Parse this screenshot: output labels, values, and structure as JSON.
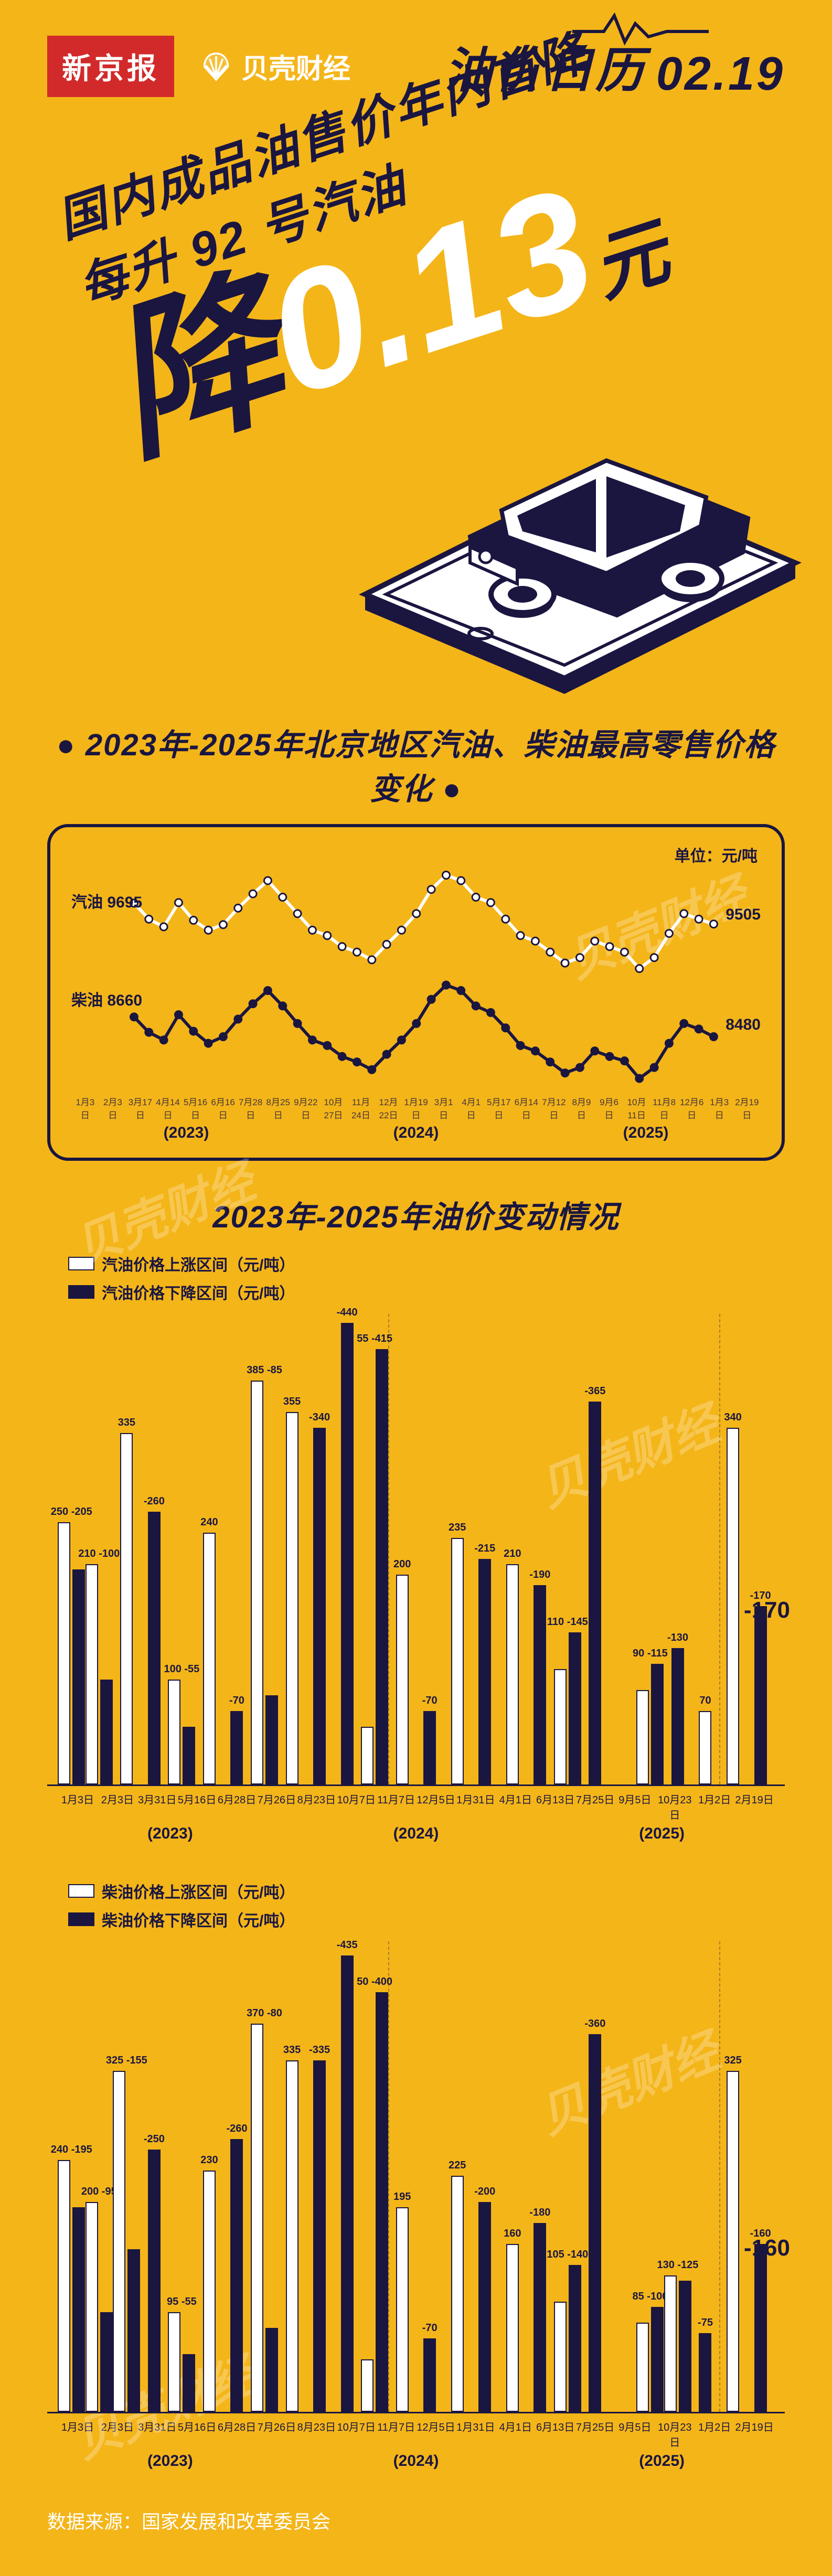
{
  "colors": {
    "bg": "#f4b519",
    "dark": "#1a1640",
    "red": "#d22a2a",
    "white": "#ffffff"
  },
  "header": {
    "brand_red": "新京报",
    "brand_shell": "贝壳财经",
    "title_script": "油价日历",
    "date": "02.19"
  },
  "hero": {
    "line1": "国内成品油售价年内首降",
    "line2": "每升 92 号汽油",
    "big_prefix": "降",
    "big_price": "0.13",
    "big_unit": "元"
  },
  "line_chart": {
    "title": "2023年-2025年北京地区汽油、柴油最高零售价格变化",
    "unit": "单位：元/吨",
    "series": [
      {
        "name": "汽油",
        "label_left": "汽油 9695",
        "label_right": "9505",
        "stroke": "#ffffff",
        "stroke_width": 6,
        "marker_fill": "#ffffff",
        "points": [
          9695,
          9550,
          9480,
          9700,
          9540,
          9450,
          9500,
          9650,
          9780,
          9900,
          9750,
          9600,
          9450,
          9400,
          9300,
          9250,
          9180,
          9320,
          9450,
          9600,
          9820,
          9950,
          9900,
          9750,
          9700,
          9550,
          9400,
          9350,
          9250,
          9150,
          9200,
          9350,
          9300,
          9250,
          9100,
          9200,
          9420,
          9600,
          9550,
          9505
        ]
      },
      {
        "name": "柴油",
        "label_left": "柴油 8660",
        "label_right": "8480",
        "stroke": "#1a1640",
        "stroke_width": 6,
        "marker_fill": "#1a1640",
        "points": [
          8660,
          8520,
          8450,
          8680,
          8530,
          8420,
          8480,
          8640,
          8780,
          8900,
          8760,
          8600,
          8450,
          8400,
          8300,
          8250,
          8180,
          8320,
          8450,
          8600,
          8820,
          8950,
          8900,
          8760,
          8700,
          8560,
          8400,
          8350,
          8250,
          8150,
          8200,
          8350,
          8300,
          8260,
          8100,
          8200,
          8420,
          8600,
          8550,
          8480
        ]
      }
    ],
    "ylim": [
      8000,
      10100
    ],
    "x_ticks": [
      "1月3日",
      "2月3日",
      "3月17日",
      "4月14日",
      "5月16日",
      "6月16日",
      "7月28日",
      "8月25日",
      "9月22日",
      "10月27日",
      "11月24日",
      "12月22日",
      "1月19日",
      "3月1日",
      "4月1日",
      "5月17日",
      "6月14日",
      "7月12日",
      "8月9日",
      "9月6日",
      "10月11日",
      "11月8日",
      "12月6日",
      "1月3日",
      "2月19日"
    ],
    "years": [
      "(2023)",
      "(2024)",
      "(2025)"
    ]
  },
  "section2_title": "2023年-2025年油价变动情况",
  "gasoline_bars": {
    "legend": {
      "up": "汽油价格上涨区间（元/吨）",
      "down": "汽油价格下降区间（元/吨）"
    },
    "max": 400,
    "final": "-170",
    "years": [
      "(2023)",
      "(2024)",
      "(2025)"
    ],
    "year_breaks": [
      12,
      24
    ],
    "x_ticks": [
      "1月3日",
      "2月3日",
      "3月31日",
      "5月16日",
      "6月28日",
      "7月26日",
      "8月23日",
      "10月7日",
      "11月7日",
      "12月5日",
      "1月31日",
      "4月1日",
      "6月13日",
      "7月25日",
      "9月5日",
      "10月23日",
      "1月2日",
      "2月19日"
    ],
    "data": [
      {
        "up": 250,
        "down": 205,
        "top": "250",
        "top2": "-205"
      },
      {
        "up": 210,
        "down": 100,
        "top": "210",
        "top2": "-100"
      },
      {
        "up": 335,
        "down": null,
        "top": "335"
      },
      {
        "up": null,
        "down": 260,
        "top": "-260"
      },
      {
        "up": 100,
        "down": 55,
        "top": "100",
        "top2": "-55"
      },
      {
        "up": 240,
        "down": null,
        "top": "240"
      },
      {
        "up": null,
        "down": 70,
        "top": "-70"
      },
      {
        "up": 385,
        "down": 85,
        "top": "385",
        "top2": "-85"
      },
      {
        "up": 355,
        "down": null,
        "top": "355"
      },
      {
        "up": null,
        "down": 340,
        "top": "-340"
      },
      {
        "up": null,
        "down": 440,
        "top": "-440"
      },
      {
        "up": 55,
        "down": 415,
        "top": "55",
        "top2": "-415"
      },
      {
        "up": 200,
        "down": null,
        "top": "200"
      },
      {
        "up": null,
        "down": 70,
        "top": "-70"
      },
      {
        "up": 235,
        "down": null,
        "top": "235"
      },
      {
        "up": null,
        "down": 215,
        "top": "-215"
      },
      {
        "up": 210,
        "down": null,
        "top": "210"
      },
      {
        "up": null,
        "down": 190,
        "top": "-190"
      },
      {
        "up": 110,
        "down": 145,
        "top": "110",
        "top2": "-145"
      },
      {
        "up": null,
        "down": 365,
        "top": "-365"
      },
      {
        "up": null,
        "down": null
      },
      {
        "up": 90,
        "down": 115,
        "top": "90",
        "top2": "-115"
      },
      {
        "up": null,
        "down": 130,
        "top": "-130"
      },
      {
        "up": 70,
        "down": null,
        "top": "70"
      },
      {
        "up": 340,
        "down": null,
        "top": "340"
      },
      {
        "up": null,
        "down": 170,
        "top": "-170"
      }
    ]
  },
  "diesel_bars": {
    "legend": {
      "up": "柴油价格上涨区间（元/吨）",
      "down": "柴油价格下降区间（元/吨）"
    },
    "max": 400,
    "final": "-160",
    "years": [
      "(2023)",
      "(2024)",
      "(2025)"
    ],
    "year_breaks": [
      12,
      24
    ],
    "x_ticks": [
      "1月3日",
      "2月3日",
      "3月31日",
      "5月16日",
      "6月28日",
      "7月26日",
      "8月23日",
      "10月7日",
      "11月7日",
      "12月5日",
      "1月31日",
      "4月1日",
      "6月13日",
      "7月25日",
      "9月5日",
      "10月23日",
      "1月2日",
      "2月19日"
    ],
    "data": [
      {
        "up": 240,
        "down": 195,
        "top": "240",
        "top2": "-195"
      },
      {
        "up": 200,
        "down": 95,
        "top": "200",
        "top2": "-95"
      },
      {
        "up": 325,
        "down": 155,
        "top": "325",
        "top2": "-155"
      },
      {
        "up": null,
        "down": 250,
        "top": "-250"
      },
      {
        "up": 95,
        "down": 55,
        "top": "95",
        "top2": "-55"
      },
      {
        "up": 230,
        "down": null,
        "top": "230"
      },
      {
        "up": null,
        "down": 260,
        "top": "-260"
      },
      {
        "up": 370,
        "down": 80,
        "top": "370",
        "top2": "-80"
      },
      {
        "up": 335,
        "down": null,
        "top": "335"
      },
      {
        "up": null,
        "down": 335,
        "top": "-335"
      },
      {
        "up": null,
        "down": 435,
        "top": "-435"
      },
      {
        "up": 50,
        "down": 400,
        "top": "50",
        "top2": "-400"
      },
      {
        "up": 195,
        "down": null,
        "top": "195"
      },
      {
        "up": null,
        "down": 70,
        "top": "-70"
      },
      {
        "up": 225,
        "down": null,
        "top": "225"
      },
      {
        "up": null,
        "down": 200,
        "top": "-200"
      },
      {
        "up": 160,
        "down": null,
        "top": "160"
      },
      {
        "up": null,
        "down": 180,
        "top": "-180"
      },
      {
        "up": 105,
        "down": 140,
        "top": "105",
        "top2": "-140"
      },
      {
        "up": null,
        "down": 360,
        "top": "-360"
      },
      {
        "up": null,
        "down": null
      },
      {
        "up": 85,
        "down": 100,
        "top": "85",
        "top2": "-100"
      },
      {
        "up": 130,
        "down": 125,
        "top": "130",
        "top2": "-125"
      },
      {
        "up": null,
        "down": 75,
        "top": "-75"
      },
      {
        "up": 325,
        "down": null,
        "top": "325"
      },
      {
        "up": null,
        "down": 160,
        "top": "-160"
      }
    ]
  },
  "source": "数据来源：国家发展和改革委员会"
}
